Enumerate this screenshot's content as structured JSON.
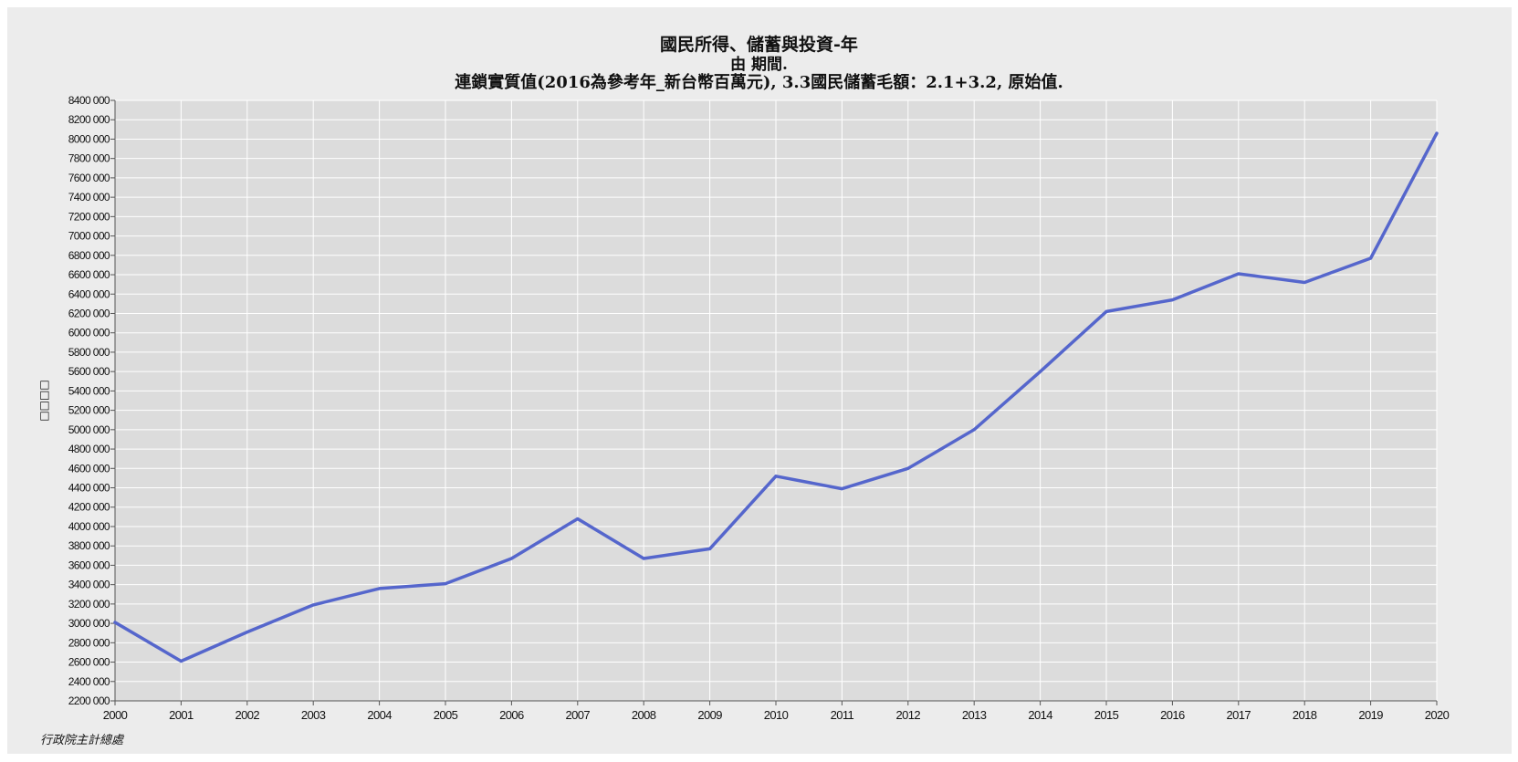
{
  "chart_data": {
    "type": "line",
    "title": "國民所得、儲蓄與投資-年",
    "subtitle": "由 期間.",
    "subtitle2": "連鎖實質值(2016為參考年_新台幣百萬元), 3.3國民儲蓄毛額：2.1+3.2, 原始值.",
    "xlabel": "",
    "ylabel": "□□□□",
    "x": [
      "2000",
      "2001",
      "2002",
      "2003",
      "2004",
      "2005",
      "2006",
      "2007",
      "2008",
      "2009",
      "2010",
      "2011",
      "2012",
      "2013",
      "2014",
      "2015",
      "2016",
      "2017",
      "2018",
      "2019",
      "2020"
    ],
    "series": [
      {
        "name": "",
        "color": "#5566cc",
        "values": [
          3010000,
          2610000,
          2910000,
          3190000,
          3360000,
          3410000,
          3670000,
          4080000,
          3670000,
          3770000,
          4520000,
          4390000,
          4600000,
          5000000,
          5600000,
          6220000,
          6340000,
          6610000,
          6520000,
          6770000,
          8060000
        ]
      }
    ],
    "ylim": [
      2200000,
      8400000
    ],
    "yticks": [
      2200000,
      2400000,
      2600000,
      2800000,
      3000000,
      3200000,
      3400000,
      3600000,
      3800000,
      4000000,
      4200000,
      4400000,
      4600000,
      4800000,
      5000000,
      5200000,
      5400000,
      5600000,
      5800000,
      6000000,
      6200000,
      6400000,
      6600000,
      6800000,
      7000000,
      7200000,
      7400000,
      7600000,
      7800000,
      8000000,
      8200000,
      8400000
    ],
    "ytick_labels": [
      "2200 000",
      "2400 000",
      "2600 000",
      "2800 000",
      "3000 000",
      "3200 000",
      "3400 000",
      "3600 000",
      "3800 000",
      "4000 000",
      "4200 000",
      "4400 000",
      "4600 000",
      "4800 000",
      "5000 000",
      "5200 000",
      "5400 000",
      "5600 000",
      "5800 000",
      "6000 000",
      "6200 000",
      "6400 000",
      "6600 000",
      "6800 000",
      "7000 000",
      "7200 000",
      "7400 000",
      "7600 000",
      "7800 000",
      "8000 000",
      "8200 000",
      "8400 000"
    ],
    "grid": true,
    "plot_background": "#dcdcdc",
    "panel_background": "#ececec",
    "grid_color": "#ffffff",
    "source": "行政院主計總處"
  }
}
